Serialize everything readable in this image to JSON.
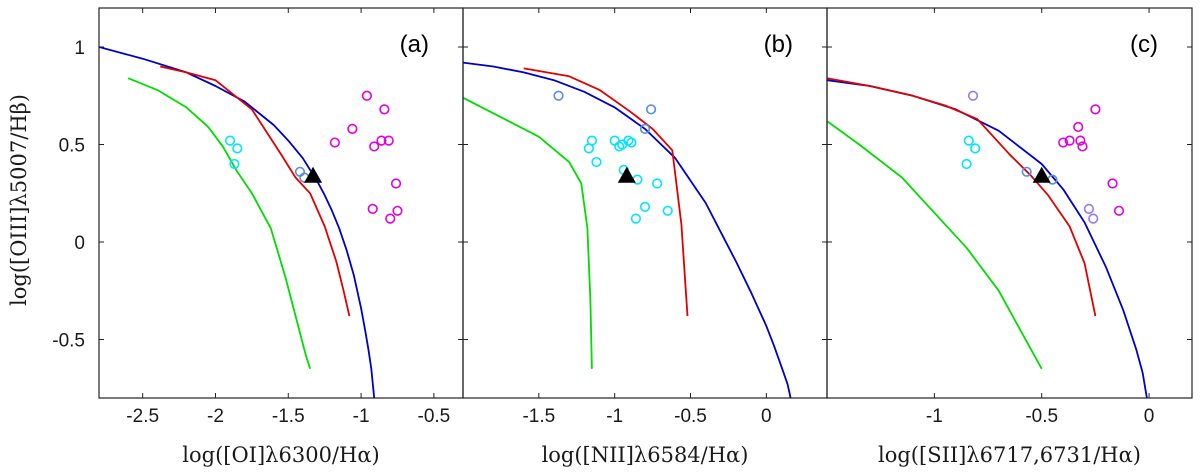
{
  "chart_data": [
    {
      "type": "line",
      "panel_label": "(a)",
      "xlabel": "log([OI]λ6300/Hα)",
      "ylabel": "log([OIII]λ5007/Hβ)",
      "xlim": [
        -2.8,
        -0.3
      ],
      "ylim": [
        -0.8,
        1.2
      ],
      "xticks": [
        -2.5,
        -2,
        -1.5,
        -1,
        -0.5
      ],
      "xtick_labels": [
        "-2.5",
        "-2",
        "-1.5",
        "-1",
        "-0.5"
      ],
      "yticks": [
        -0.5,
        0,
        0.5,
        1
      ],
      "ytick_labels": [
        "-0.5",
        "0",
        "0.5",
        "1"
      ],
      "series": [
        {
          "name": "blue-curve",
          "color": "#0000cc",
          "x": [
            -2.8,
            -2.5,
            -2.2,
            -2.0,
            -1.8,
            -1.6,
            -1.5,
            -1.4,
            -1.3,
            -1.25,
            -1.2,
            -1.15,
            -1.1,
            -1.05,
            -1.0,
            -0.97,
            -0.95,
            -0.93,
            -0.91
          ],
          "y": [
            1.0,
            0.94,
            0.87,
            0.8,
            0.72,
            0.6,
            0.52,
            0.43,
            0.31,
            0.24,
            0.16,
            0.07,
            -0.04,
            -0.17,
            -0.34,
            -0.46,
            -0.55,
            -0.65,
            -0.8
          ]
        },
        {
          "name": "red-curve",
          "color": "#e00000",
          "x": [
            -2.38,
            -2.2,
            -2.0,
            -1.75,
            -1.55,
            -1.45,
            -1.35,
            -1.25,
            -1.17,
            -1.12,
            -1.08
          ],
          "y": [
            0.9,
            0.87,
            0.83,
            0.68,
            0.45,
            0.33,
            0.25,
            0.08,
            -0.1,
            -0.25,
            -0.38
          ]
        },
        {
          "name": "green-curve",
          "color": "#00dd00",
          "x": [
            -2.6,
            -2.4,
            -2.2,
            -2.05,
            -1.95,
            -1.85,
            -1.75,
            -1.62,
            -1.52,
            -1.45,
            -1.38,
            -1.35
          ],
          "y": [
            0.84,
            0.78,
            0.69,
            0.59,
            0.49,
            0.36,
            0.25,
            0.07,
            -0.18,
            -0.38,
            -0.58,
            -0.65
          ]
        }
      ],
      "scatter": [
        {
          "name": "cyan",
          "color": "#00e5ff",
          "points": [
            [
              -1.9,
              0.52
            ],
            [
              -1.85,
              0.48
            ],
            [
              -1.87,
              0.4
            ]
          ]
        },
        {
          "name": "blue",
          "color": "#5a8de0",
          "points": [
            [
              -1.42,
              0.36
            ],
            [
              -1.39,
              0.33
            ]
          ]
        },
        {
          "name": "magenta",
          "color": "#e000e0",
          "points": [
            [
              -0.96,
              0.75
            ],
            [
              -0.84,
              0.68
            ],
            [
              -1.06,
              0.58
            ],
            [
              -1.18,
              0.51
            ],
            [
              -0.91,
              0.49
            ],
            [
              -0.86,
              0.52
            ],
            [
              -0.81,
              0.52
            ],
            [
              -0.76,
              0.3
            ],
            [
              -0.92,
              0.17
            ],
            [
              -0.8,
              0.12
            ],
            [
              -0.75,
              0.16
            ]
          ]
        }
      ],
      "triangle": {
        "x": -1.33,
        "y": 0.34,
        "color": "#000000"
      }
    },
    {
      "type": "line",
      "panel_label": "(b)",
      "xlabel": "log([NII]λ6584/Hα)",
      "xlim": [
        -2.0,
        0.4
      ],
      "ylim": [
        -0.8,
        1.2
      ],
      "xticks": [
        -1.5,
        -1,
        -0.5,
        0
      ],
      "xtick_labels": [
        "-1.5",
        "-1",
        "-0.5",
        "0"
      ],
      "yticks": [
        -0.5,
        0,
        0.5,
        1
      ],
      "series": [
        {
          "name": "blue-curve",
          "color": "#0000cc",
          "x": [
            -2.0,
            -1.8,
            -1.6,
            -1.4,
            -1.2,
            -1.0,
            -0.8,
            -0.6,
            -0.4,
            -0.3,
            -0.2,
            -0.1,
            0.0,
            0.05,
            0.1,
            0.14,
            0.16
          ],
          "y": [
            0.92,
            0.9,
            0.87,
            0.83,
            0.77,
            0.69,
            0.58,
            0.43,
            0.2,
            0.05,
            -0.1,
            -0.26,
            -0.43,
            -0.53,
            -0.64,
            -0.73,
            -0.8
          ]
        },
        {
          "name": "red-curve",
          "color": "#e00000",
          "x": [
            -1.6,
            -1.3,
            -1.1,
            -0.9,
            -0.75,
            -0.62,
            -0.56,
            -0.52
          ],
          "y": [
            0.89,
            0.85,
            0.78,
            0.67,
            0.58,
            0.47,
            0.09,
            -0.38
          ]
        },
        {
          "name": "green-curve",
          "color": "#00dd00",
          "x": [
            -2.0,
            -1.85,
            -1.7,
            -1.5,
            -1.3,
            -1.22,
            -1.18,
            -1.16,
            -1.15
          ],
          "y": [
            0.74,
            0.68,
            0.62,
            0.54,
            0.41,
            0.3,
            0.07,
            -0.3,
            -0.65
          ]
        }
      ],
      "scatter": [
        {
          "name": "cyan",
          "color": "#00e5ff",
          "points": [
            [
              -1.15,
              0.52
            ],
            [
              -1.17,
              0.48
            ],
            [
              -1.12,
              0.41
            ],
            [
              -1.0,
              0.52
            ],
            [
              -0.97,
              0.49
            ],
            [
              -0.95,
              0.5
            ],
            [
              -0.91,
              0.52
            ],
            [
              -0.89,
              0.51
            ],
            [
              -0.85,
              0.32
            ],
            [
              -0.94,
              0.37
            ],
            [
              -0.72,
              0.3
            ],
            [
              -0.8,
              0.18
            ],
            [
              -0.86,
              0.12
            ],
            [
              -0.65,
              0.16
            ]
          ]
        },
        {
          "name": "blue",
          "color": "#5a8de0",
          "points": [
            [
              -1.37,
              0.75
            ],
            [
              -0.8,
              0.58
            ],
            [
              -0.76,
              0.68
            ]
          ]
        }
      ],
      "triangle": {
        "x": -0.92,
        "y": 0.34,
        "color": "#000000"
      }
    },
    {
      "type": "line",
      "panel_label": "(c)",
      "xlabel": "log([SII]λ6717,6731/Hα)",
      "xlim": [
        -1.5,
        0.2
      ],
      "ylim": [
        -0.8,
        1.2
      ],
      "xticks": [
        -1,
        -0.5,
        0
      ],
      "xtick_labels": [
        "-1",
        "-0.5",
        "0"
      ],
      "yticks": [
        -0.5,
        0,
        0.5,
        1
      ],
      "series": [
        {
          "name": "blue-curve",
          "color": "#0000cc",
          "x": [
            -1.5,
            -1.3,
            -1.1,
            -0.9,
            -0.7,
            -0.5,
            -0.4,
            -0.3,
            -0.2,
            -0.12,
            -0.06,
            -0.03,
            -0.01
          ],
          "y": [
            0.83,
            0.8,
            0.75,
            0.68,
            0.57,
            0.4,
            0.27,
            0.1,
            -0.13,
            -0.35,
            -0.55,
            -0.67,
            -0.8
          ]
        },
        {
          "name": "red-curve",
          "color": "#e00000",
          "x": [
            -1.5,
            -1.3,
            -1.1,
            -0.95,
            -0.8,
            -0.65,
            -0.55,
            -0.47,
            -0.37,
            -0.3,
            -0.25
          ],
          "y": [
            0.84,
            0.8,
            0.75,
            0.7,
            0.63,
            0.45,
            0.34,
            0.24,
            0.08,
            -0.11,
            -0.38
          ]
        },
        {
          "name": "green-curve",
          "color": "#00dd00",
          "x": [
            -1.5,
            -1.35,
            -1.15,
            -1.0,
            -0.85,
            -0.7,
            -0.6,
            -0.5
          ],
          "y": [
            0.62,
            0.5,
            0.33,
            0.15,
            -0.03,
            -0.25,
            -0.45,
            -0.65
          ]
        }
      ],
      "scatter": [
        {
          "name": "cyan",
          "color": "#00e5ff",
          "points": [
            [
              -0.84,
              0.52
            ],
            [
              -0.81,
              0.48
            ],
            [
              -0.85,
              0.4
            ]
          ]
        },
        {
          "name": "blue",
          "color": "#5a8de0",
          "points": [
            [
              -0.57,
              0.36
            ],
            [
              -0.45,
              0.32
            ]
          ]
        },
        {
          "name": "violet",
          "color": "#9a7ae6",
          "points": [
            [
              -0.82,
              0.75
            ],
            [
              -0.28,
              0.17
            ],
            [
              -0.26,
              0.12
            ]
          ]
        },
        {
          "name": "magenta",
          "color": "#e000e0",
          "points": [
            [
              -0.25,
              0.68
            ],
            [
              -0.33,
              0.59
            ],
            [
              -0.4,
              0.51
            ],
            [
              -0.37,
              0.52
            ],
            [
              -0.32,
              0.52
            ],
            [
              -0.31,
              0.49
            ],
            [
              -0.17,
              0.3
            ],
            [
              -0.14,
              0.16
            ]
          ]
        }
      ],
      "triangle": {
        "x": -0.5,
        "y": 0.34,
        "color": "#000000"
      }
    }
  ]
}
